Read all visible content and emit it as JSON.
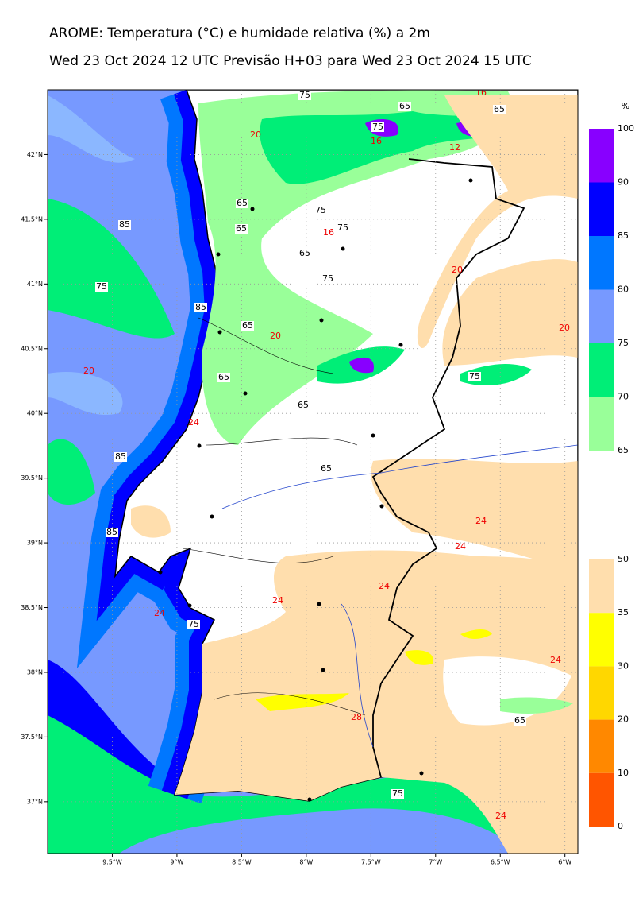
{
  "header": {
    "title": "AROME: Temperatura (°C) e humidade relativa (%) a 2m",
    "subtitle": "Wed 23 Oct 2024 12 UTC Previsão H+03 para Wed 23 Oct 2024 15 UTC"
  },
  "map": {
    "lon_ticks": [
      {
        "value": -9.5,
        "label": "9.5°W"
      },
      {
        "value": -9,
        "label": "9°W"
      },
      {
        "value": -8.5,
        "label": "8.5°W"
      },
      {
        "value": -8,
        "label": "8°W"
      },
      {
        "value": -7.5,
        "label": "7.5°W"
      },
      {
        "value": -7,
        "label": "7°W"
      },
      {
        "value": -6.5,
        "label": "6.5°W"
      },
      {
        "value": -6,
        "label": "6°W"
      }
    ],
    "lat_ticks": [
      {
        "value": 42,
        "label": "42°N"
      },
      {
        "value": 41.5,
        "label": "41.5°N"
      },
      {
        "value": 41,
        "label": "41°N"
      },
      {
        "value": 40.5,
        "label": "40.5°N"
      },
      {
        "value": 40,
        "label": "40°N"
      },
      {
        "value": 39.5,
        "label": "39.5°N"
      },
      {
        "value": 39,
        "label": "39°N"
      },
      {
        "value": 38.5,
        "label": "38.5°N"
      },
      {
        "value": 38,
        "label": "38°N"
      },
      {
        "value": 37.5,
        "label": "37.5°N"
      },
      {
        "value": 37,
        "label": "37°N"
      }
    ],
    "lonlim": [
      -10,
      -5.9
    ],
    "latlim": [
      36.6,
      42.5
    ],
    "contour_labels": [
      "75",
      "65",
      "16",
      "65",
      "20",
      "75",
      "16",
      "12",
      "65",
      "75",
      "65",
      "75",
      "16",
      "85",
      "65",
      "75",
      "75",
      "20",
      "85",
      "65",
      "20",
      "20",
      "65",
      "75",
      "20",
      "24",
      "65",
      "85",
      "65",
      "24",
      "85",
      "24",
      "24",
      "24",
      "24",
      "75",
      "24",
      "28",
      "65",
      "75",
      "24"
    ]
  },
  "colorbar_humidity": {
    "unit": "%",
    "ticks": [
      100,
      90,
      85,
      80,
      75,
      70,
      65
    ],
    "colors": [
      "#8800ff",
      "#0000ff",
      "#0077ff",
      "#7799ff",
      "#00ee77",
      "#99ff99"
    ]
  },
  "colorbar_low": {
    "ticks": [
      50,
      35,
      30,
      20,
      10,
      0
    ],
    "colors": [
      "#ffdead",
      "#ffff00",
      "#ffd700",
      "#ff8800",
      "#ff5500"
    ]
  }
}
